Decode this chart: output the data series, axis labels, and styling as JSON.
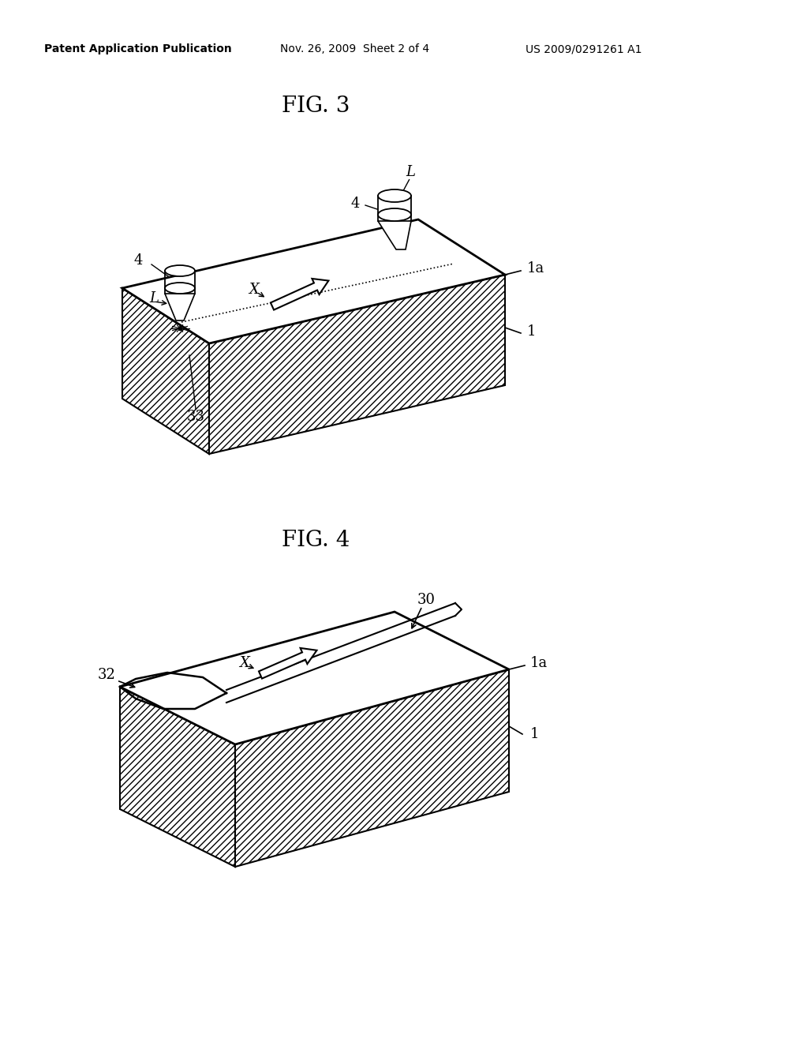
{
  "background_color": "#ffffff",
  "header_text": "Patent Application Publication",
  "header_date": "Nov. 26, 2009  Sheet 2 of 4",
  "header_patent": "US 2009/0291261 A1",
  "fig3_title": "FIG. 3",
  "fig4_title": "FIG. 4",
  "line_color": "#000000",
  "text_color": "#000000"
}
